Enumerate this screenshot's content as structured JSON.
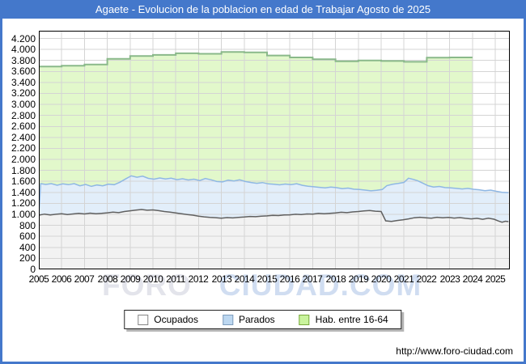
{
  "watermark": {
    "part1": "FORO",
    "part2": "CIUDAD.COM"
  },
  "footer": {
    "url": "http://www.foro-ciudad.com"
  },
  "colors": {
    "frame_blue": "#4478cb",
    "title_text": "#ffffff",
    "grid": "#d4d4d4",
    "plot_border": "#000000",
    "watermark_gray": "rgba(185,188,205,0.40)",
    "watermark_blue": "rgba(150,180,225,0.45)"
  },
  "legend": {
    "items": [
      {
        "label": "Ocupados",
        "fill": "#fdfdfd",
        "border": "#848484"
      },
      {
        "label": "Parados",
        "fill": "#bdd8f1",
        "border": "#7d9cbd"
      },
      {
        "label": "Hab. entre 16-64",
        "fill": "#c9f39d",
        "border": "#7aa93e"
      }
    ]
  },
  "chart_data": {
    "type": "area",
    "title": "Agaete - Evolucion de la poblacion en edad de Trabajar Agosto de 2025",
    "xlabel": "",
    "ylabel": "",
    "grid": true,
    "legend_position": "bottom",
    "x_min": 2005,
    "x_max": 2025.64,
    "y_min": 0,
    "y_max": 4200,
    "y_tick_step": 200,
    "y_plot_max": 4340,
    "x_ticks": [
      2005,
      2006,
      2007,
      2008,
      2009,
      2010,
      2011,
      2012,
      2013,
      2014,
      2015,
      2016,
      2017,
      2018,
      2019,
      2020,
      2021,
      2022,
      2023,
      2024,
      2025
    ],
    "y_tick_labels": [
      "0",
      "200",
      "400",
      "600",
      "800",
      "1.000",
      "1.200",
      "1.400",
      "1.600",
      "1.800",
      "2.000",
      "2.200",
      "2.400",
      "2.600",
      "2.800",
      "3.000",
      "3.200",
      "3.400",
      "3.600",
      "3.800",
      "4.000",
      "4.200"
    ],
    "series": [
      {
        "name": "Hab. entre 16-64",
        "step": true,
        "fill": "#e2f8cb",
        "line": "#8ab98a",
        "line_width": 2,
        "points": [
          [
            2005,
            3690
          ],
          [
            2006,
            3705
          ],
          [
            2007,
            3725
          ],
          [
            2008,
            3830
          ],
          [
            2009,
            3880
          ],
          [
            2010,
            3900
          ],
          [
            2011,
            3930
          ],
          [
            2012,
            3920
          ],
          [
            2013,
            3955
          ],
          [
            2014,
            3945
          ],
          [
            2015,
            3890
          ],
          [
            2016,
            3855
          ],
          [
            2017,
            3820
          ],
          [
            2018,
            3785
          ],
          [
            2019,
            3800
          ],
          [
            2020,
            3790
          ],
          [
            2021,
            3775
          ],
          [
            2022,
            3850
          ],
          [
            2023,
            3855
          ],
          [
            2024,
            3855
          ]
        ]
      },
      {
        "name": "Parados",
        "step": false,
        "fill": "#e2eefa",
        "line": "#8fb7e4",
        "line_width": 1.5,
        "points": [
          [
            2005.0,
            1000
          ],
          [
            2005.08,
            1560
          ],
          [
            2005.3,
            1545
          ],
          [
            2005.55,
            1560
          ],
          [
            2005.8,
            1530
          ],
          [
            2006.05,
            1555
          ],
          [
            2006.3,
            1540
          ],
          [
            2006.55,
            1560
          ],
          [
            2006.8,
            1520
          ],
          [
            2007.05,
            1545
          ],
          [
            2007.3,
            1510
          ],
          [
            2007.55,
            1535
          ],
          [
            2007.8,
            1520
          ],
          [
            2008.05,
            1550
          ],
          [
            2008.3,
            1540
          ],
          [
            2008.55,
            1585
          ],
          [
            2008.8,
            1645
          ],
          [
            2009.05,
            1700
          ],
          [
            2009.3,
            1675
          ],
          [
            2009.55,
            1695
          ],
          [
            2009.8,
            1655
          ],
          [
            2010.05,
            1640
          ],
          [
            2010.3,
            1662
          ],
          [
            2010.55,
            1645
          ],
          [
            2010.8,
            1658
          ],
          [
            2011.05,
            1632
          ],
          [
            2011.3,
            1648
          ],
          [
            2011.55,
            1625
          ],
          [
            2011.8,
            1640
          ],
          [
            2012.05,
            1615
          ],
          [
            2012.3,
            1652
          ],
          [
            2012.55,
            1628
          ],
          [
            2012.8,
            1598
          ],
          [
            2013.05,
            1590
          ],
          [
            2013.3,
            1622
          ],
          [
            2013.55,
            1608
          ],
          [
            2013.8,
            1628
          ],
          [
            2014.05,
            1598
          ],
          [
            2014.3,
            1580
          ],
          [
            2014.55,
            1565
          ],
          [
            2014.8,
            1578
          ],
          [
            2015.05,
            1555
          ],
          [
            2015.3,
            1548
          ],
          [
            2015.55,
            1538
          ],
          [
            2015.8,
            1552
          ],
          [
            2016.05,
            1542
          ],
          [
            2016.3,
            1558
          ],
          [
            2016.55,
            1528
          ],
          [
            2016.8,
            1512
          ],
          [
            2017.05,
            1502
          ],
          [
            2017.3,
            1492
          ],
          [
            2017.55,
            1482
          ],
          [
            2017.8,
            1496
          ],
          [
            2018.05,
            1486
          ],
          [
            2018.3,
            1468
          ],
          [
            2018.55,
            1478
          ],
          [
            2018.8,
            1458
          ],
          [
            2019.05,
            1452
          ],
          [
            2019.3,
            1442
          ],
          [
            2019.55,
            1428
          ],
          [
            2019.8,
            1438
          ],
          [
            2020.05,
            1452
          ],
          [
            2020.25,
            1522
          ],
          [
            2020.5,
            1548
          ],
          [
            2020.75,
            1562
          ],
          [
            2021.0,
            1582
          ],
          [
            2021.2,
            1658
          ],
          [
            2021.4,
            1638
          ],
          [
            2021.6,
            1612
          ],
          [
            2021.8,
            1572
          ],
          [
            2022.05,
            1522
          ],
          [
            2022.3,
            1498
          ],
          [
            2022.55,
            1508
          ],
          [
            2022.8,
            1488
          ],
          [
            2023.05,
            1482
          ],
          [
            2023.3,
            1472
          ],
          [
            2023.55,
            1462
          ],
          [
            2023.8,
            1472
          ],
          [
            2024.05,
            1456
          ],
          [
            2024.3,
            1448
          ],
          [
            2024.55,
            1432
          ],
          [
            2024.8,
            1442
          ],
          [
            2025.05,
            1420
          ],
          [
            2025.3,
            1402
          ],
          [
            2025.58,
            1396
          ]
        ]
      },
      {
        "name": "Ocupados",
        "step": false,
        "fill": "#f2f2f2",
        "line": "#606060",
        "line_width": 1.5,
        "points": [
          [
            2005.0,
            985
          ],
          [
            2005.25,
            1005
          ],
          [
            2005.5,
            990
          ],
          [
            2005.75,
            1002
          ],
          [
            2006.0,
            1012
          ],
          [
            2006.25,
            998
          ],
          [
            2006.5,
            1008
          ],
          [
            2006.75,
            1018
          ],
          [
            2007.0,
            1008
          ],
          [
            2007.25,
            1022
          ],
          [
            2007.5,
            1012
          ],
          [
            2007.75,
            1018
          ],
          [
            2008.0,
            1028
          ],
          [
            2008.25,
            1042
          ],
          [
            2008.5,
            1032
          ],
          [
            2008.75,
            1052
          ],
          [
            2009.0,
            1065
          ],
          [
            2009.25,
            1078
          ],
          [
            2009.5,
            1088
          ],
          [
            2009.75,
            1075
          ],
          [
            2010.0,
            1082
          ],
          [
            2010.25,
            1068
          ],
          [
            2010.5,
            1052
          ],
          [
            2010.75,
            1040
          ],
          [
            2011.0,
            1025
          ],
          [
            2011.25,
            1010
          ],
          [
            2011.5,
            998
          ],
          [
            2011.75,
            985
          ],
          [
            2012.0,
            968
          ],
          [
            2012.25,
            955
          ],
          [
            2012.5,
            945
          ],
          [
            2012.75,
            940
          ],
          [
            2013.0,
            930
          ],
          [
            2013.25,
            942
          ],
          [
            2013.5,
            935
          ],
          [
            2013.75,
            945
          ],
          [
            2014.0,
            952
          ],
          [
            2014.25,
            962
          ],
          [
            2014.5,
            958
          ],
          [
            2014.75,
            968
          ],
          [
            2015.0,
            972
          ],
          [
            2015.25,
            982
          ],
          [
            2015.5,
            978
          ],
          [
            2015.75,
            988
          ],
          [
            2016.0,
            992
          ],
          [
            2016.25,
            1002
          ],
          [
            2016.5,
            998
          ],
          [
            2016.75,
            1008
          ],
          [
            2017.0,
            1005
          ],
          [
            2017.25,
            1018
          ],
          [
            2017.5,
            1012
          ],
          [
            2017.75,
            1020
          ],
          [
            2018.0,
            1025
          ],
          [
            2018.25,
            1038
          ],
          [
            2018.5,
            1032
          ],
          [
            2018.75,
            1045
          ],
          [
            2019.0,
            1052
          ],
          [
            2019.25,
            1062
          ],
          [
            2019.5,
            1070
          ],
          [
            2019.75,
            1058
          ],
          [
            2020.0,
            1052
          ],
          [
            2020.2,
            882
          ],
          [
            2020.45,
            872
          ],
          [
            2020.7,
            888
          ],
          [
            2020.95,
            902
          ],
          [
            2021.2,
            918
          ],
          [
            2021.45,
            938
          ],
          [
            2021.7,
            948
          ],
          [
            2021.95,
            938
          ],
          [
            2022.2,
            930
          ],
          [
            2022.45,
            948
          ],
          [
            2022.7,
            938
          ],
          [
            2022.95,
            946
          ],
          [
            2023.2,
            932
          ],
          [
            2023.45,
            942
          ],
          [
            2023.7,
            928
          ],
          [
            2023.95,
            918
          ],
          [
            2024.2,
            928
          ],
          [
            2024.45,
            910
          ],
          [
            2024.7,
            930
          ],
          [
            2024.95,
            912
          ],
          [
            2025.15,
            878
          ],
          [
            2025.3,
            858
          ],
          [
            2025.45,
            876
          ],
          [
            2025.58,
            868
          ]
        ]
      }
    ]
  }
}
